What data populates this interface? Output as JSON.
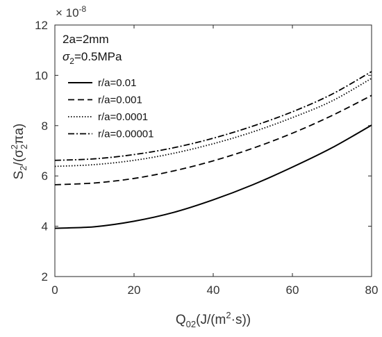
{
  "chart_data": {
    "type": "line",
    "xlabel": {
      "main": "Q",
      "sub": "02",
      "mid": "(J/(m",
      "sup": "2",
      "tail": "·s))"
    },
    "ylabel": {
      "s": "S",
      "s_sub": "2",
      "mid": "/(σ",
      "sig_sup": "2",
      "sig_sub": "2",
      "tail": "πa)"
    },
    "exponent": {
      "base": "× 10",
      "power": "-8"
    },
    "xlim": [
      0,
      80
    ],
    "ylim": [
      2,
      12
    ],
    "x_ticks": [
      0,
      20,
      40,
      60,
      80
    ],
    "y_ticks": [
      2,
      4,
      6,
      8,
      10,
      12
    ],
    "grid": false,
    "legend_placement": "top-left",
    "annotations": {
      "line1": "2a=2mm",
      "line2": {
        "sigma": "σ",
        "sub": "2",
        "rest": "=0.5MPa"
      }
    },
    "x": [
      0,
      10,
      20,
      30,
      40,
      50,
      60,
      70,
      80
    ],
    "series": [
      {
        "name": "r/a=0.01",
        "style": "solid",
        "values": [
          3.92,
          3.98,
          4.2,
          4.55,
          5.05,
          5.65,
          6.35,
          7.12,
          8.02
        ]
      },
      {
        "name": "r/a=0.001",
        "style": "dashed",
        "values": [
          5.65,
          5.72,
          5.9,
          6.2,
          6.6,
          7.1,
          7.7,
          8.4,
          9.2
        ]
      },
      {
        "name": "r/a=0.0001",
        "style": "dotted",
        "values": [
          6.38,
          6.45,
          6.62,
          6.9,
          7.28,
          7.75,
          8.32,
          8.98,
          9.88
        ]
      },
      {
        "name": "r/a=0.00001",
        "style": "dashdot",
        "values": [
          6.62,
          6.68,
          6.85,
          7.12,
          7.5,
          7.98,
          8.55,
          9.25,
          10.15
        ]
      }
    ]
  }
}
